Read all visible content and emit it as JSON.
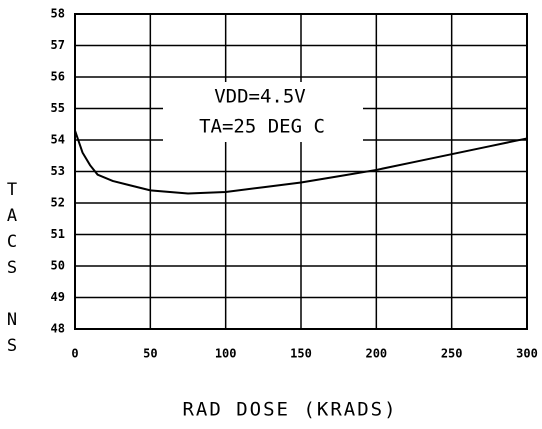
{
  "chart_data": {
    "type": "line",
    "x_label": "RAD DOSE (KRADS)",
    "y_label": "TACS NS",
    "annotations": [
      "VDD=4.5V",
      "TA=25 DEG C"
    ],
    "x": [
      0,
      5,
      10,
      15,
      25,
      50,
      75,
      100,
      125,
      150,
      175,
      200,
      225,
      250,
      275,
      300
    ],
    "series": [
      {
        "name": "TACS",
        "color": "#000000",
        "values": [
          54.3,
          53.6,
          53.2,
          52.9,
          52.7,
          52.4,
          52.3,
          52.35,
          52.5,
          52.65,
          52.85,
          53.05,
          53.3,
          53.55,
          53.8,
          54.05
        ]
      }
    ],
    "xlim": [
      0,
      300
    ],
    "xticks": [
      0,
      50,
      100,
      150,
      200,
      250,
      300
    ],
    "ylim": [
      48,
      58
    ],
    "yticks": [
      48,
      49,
      50,
      51,
      52,
      53,
      54,
      55,
      56,
      57,
      58
    ],
    "grid": true
  }
}
